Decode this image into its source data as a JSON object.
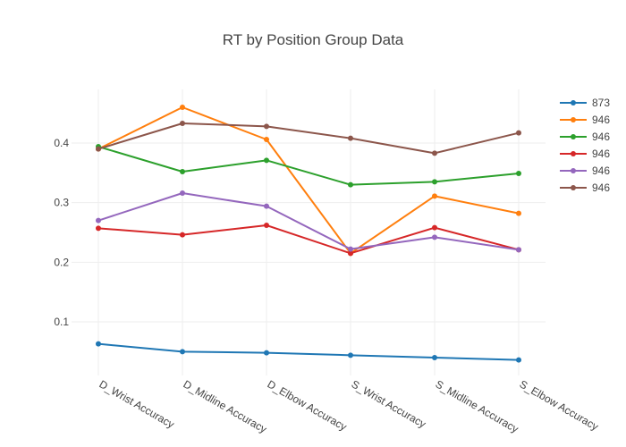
{
  "chart_data": {
    "type": "line",
    "title": "RT by Position Group Data",
    "xlabel": "",
    "ylabel": "",
    "categories": [
      "D_Wrist Accuracy",
      "D_Midline Accuracy",
      "D_Elbow Accuracy",
      "S_Wrist Accuracy",
      "S_Midline Accuracy",
      "S_Elbow Accuracy"
    ],
    "ylim": [
      0.01,
      0.49
    ],
    "yticks": [
      0.1,
      0.2,
      0.3,
      0.4
    ],
    "yticklabels": [
      "0.1",
      "0.2",
      "0.3",
      "0.4"
    ],
    "grid": true,
    "legend_position": "top-right",
    "series": [
      {
        "name": "873",
        "color": "#1f77b4",
        "values": [
          0.063,
          0.05,
          0.048,
          0.044,
          0.04,
          0.036
        ]
      },
      {
        "name": "946",
        "color": "#ff7f0e",
        "values": [
          0.39,
          0.46,
          0.406,
          0.215,
          0.311,
          0.282
        ]
      },
      {
        "name": "946",
        "color": "#2ca02c",
        "values": [
          0.394,
          0.352,
          0.371,
          0.33,
          0.335,
          0.349
        ]
      },
      {
        "name": "946",
        "color": "#d62728",
        "values": [
          0.257,
          0.246,
          0.262,
          0.215,
          0.258,
          0.221
        ]
      },
      {
        "name": "946",
        "color": "#9467bd",
        "values": [
          0.27,
          0.316,
          0.294,
          0.222,
          0.242,
          0.221
        ]
      },
      {
        "name": "946",
        "color": "#8c564b",
        "values": [
          0.39,
          0.433,
          0.428,
          0.408,
          0.383,
          0.417
        ]
      }
    ]
  }
}
